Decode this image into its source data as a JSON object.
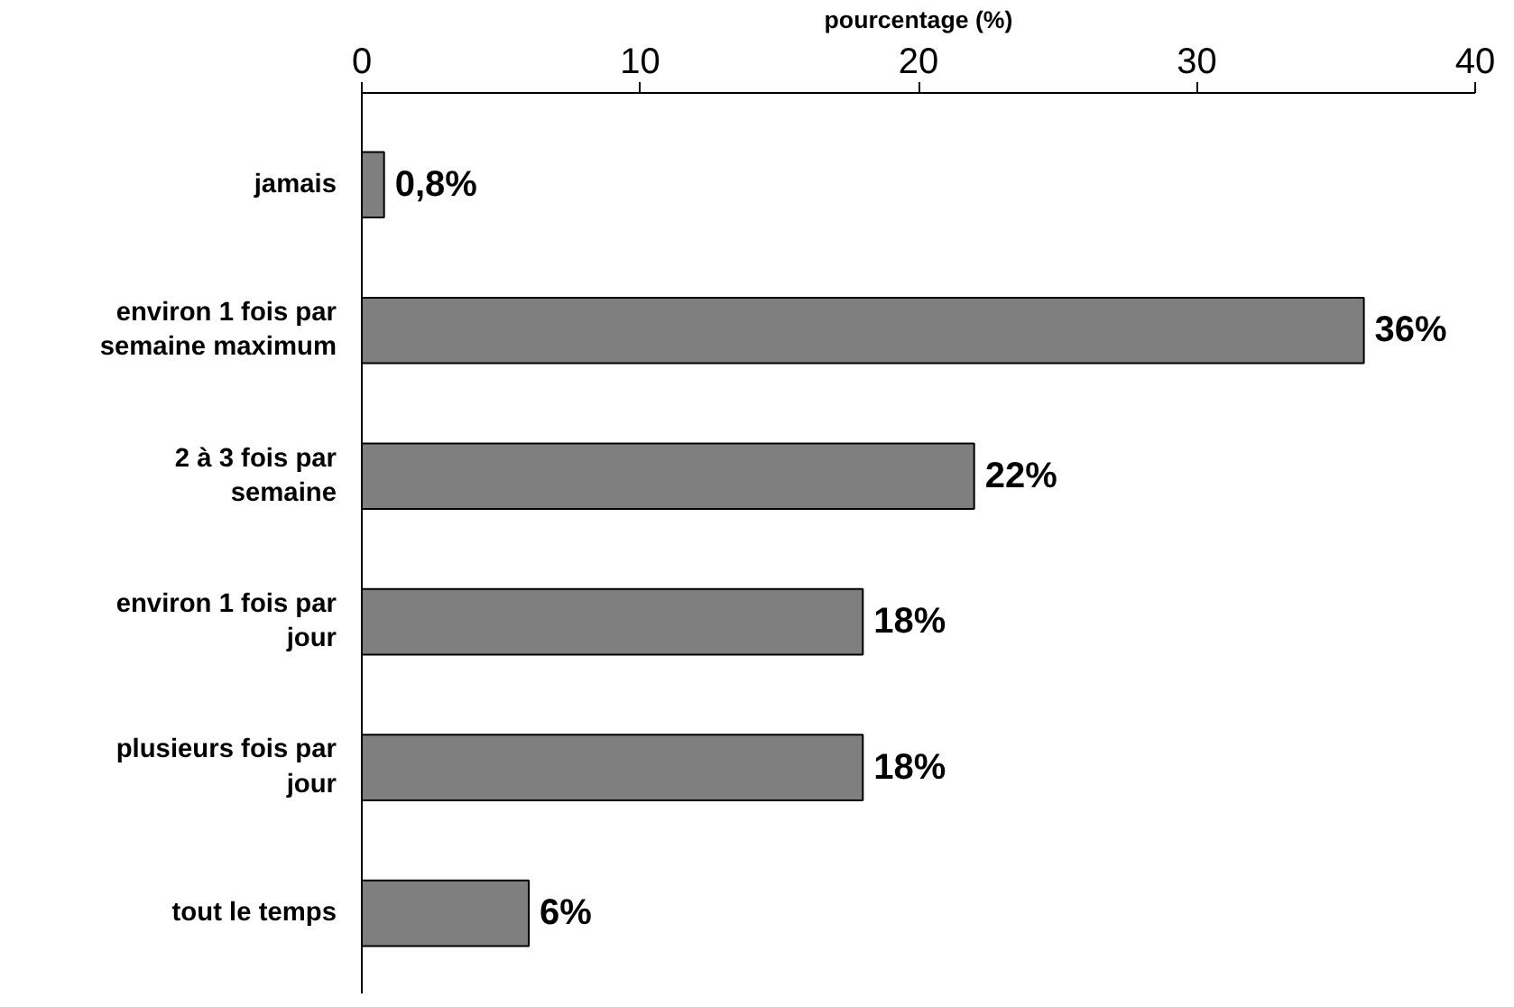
{
  "chart_data": {
    "type": "bar",
    "orientation": "horizontal",
    "xlabel": "pourcentage (%)",
    "categories": [
      "jamais",
      "environ 1 fois par\nsemaine maximum",
      "2 à 3 fois par\nsemaine",
      "environ 1 fois par\njour",
      "plusieurs fois par\njour",
      "tout le temps"
    ],
    "values": [
      0.8,
      36,
      22,
      18,
      18,
      6
    ],
    "value_labels": [
      "0,8%",
      "36%",
      "22%",
      "18%",
      "18%",
      "6%"
    ],
    "color": "#7f7f7f",
    "xlim": [
      0,
      40
    ],
    "xticks": [
      0,
      10,
      20,
      30,
      40
    ],
    "grid": false
  }
}
